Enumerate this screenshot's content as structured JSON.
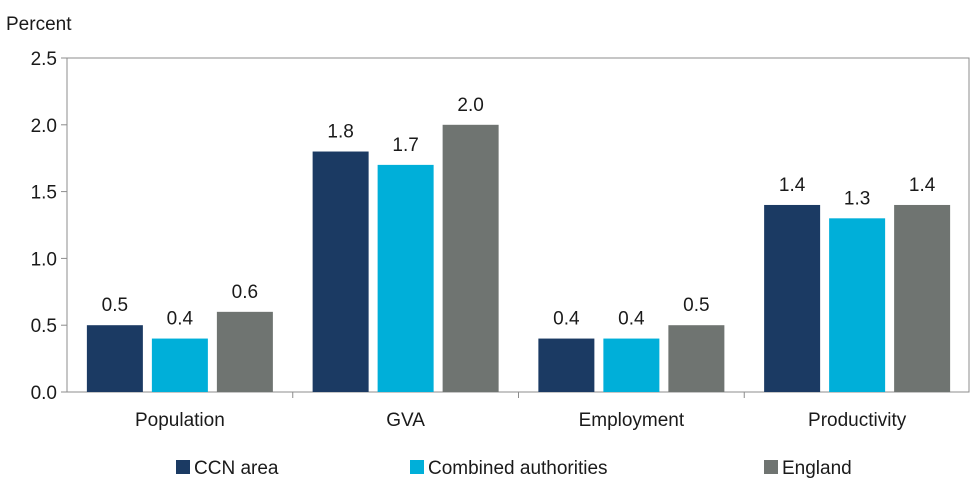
{
  "chart_data": {
    "type": "bar",
    "ylabel": "Percent",
    "xlabel": "",
    "ylim": [
      0,
      2.5
    ],
    "yticks": [
      "0.0",
      "0.5",
      "1.0",
      "1.5",
      "2.0",
      "2.5"
    ],
    "categories": [
      "Population",
      "GVA",
      "Employment",
      "Productivity"
    ],
    "series": [
      {
        "name": "CCN area",
        "values": [
          0.5,
          1.8,
          0.4,
          1.4
        ],
        "labels": [
          "0.5",
          "1.8",
          "0.4",
          "1.4"
        ],
        "color": "#1b3a63"
      },
      {
        "name": "Combined authorities",
        "values": [
          0.4,
          1.7,
          0.4,
          1.3
        ],
        "labels": [
          "0.4",
          "1.7",
          "0.4",
          "1.3"
        ],
        "color": "#00afd9"
      },
      {
        "name": "England",
        "values": [
          0.6,
          2.0,
          0.5,
          1.4
        ],
        "labels": [
          "0.6",
          "2.0",
          "0.5",
          "1.4"
        ],
        "color": "#6f7471"
      }
    ],
    "grid": false,
    "legend_position": "bottom"
  }
}
